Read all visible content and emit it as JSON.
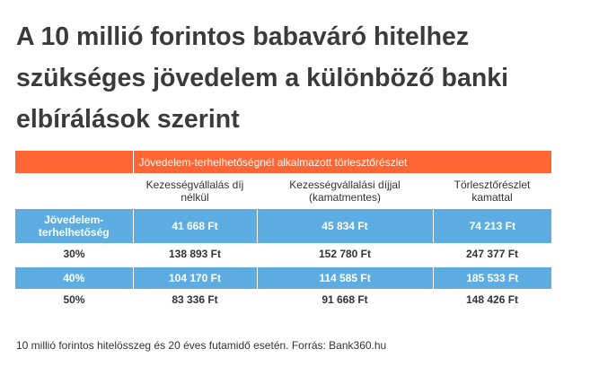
{
  "title": "A 10 millió forintos babaváró hitelhez szükséges jövedelem a különböző banki elbírálások szerint",
  "colors": {
    "orange": "#ff6633",
    "blue": "#5dade2"
  },
  "chart_data": {
    "type": "table",
    "group_header": "Jövedelem-terhelhetőségnél alkalmazott törlesztőrészlet",
    "columns": [
      "",
      "Kezességvállalás díj nélkül",
      "Kezességvállalási díjjal (kamatmentes)",
      "Törlesztőrészlet kamattal"
    ],
    "rows": [
      [
        "Jövedelem-terhelhetőség",
        "41 668 Ft",
        "45 834 Ft",
        "74 213 Ft"
      ],
      [
        "30%",
        "138 893 Ft",
        "152 780 Ft",
        "247 377 Ft"
      ],
      [
        "40%",
        "104 170 Ft",
        "114 585  Ft",
        "185 533 Ft"
      ],
      [
        "50%",
        "83 336 Ft",
        "91 668  Ft",
        "148 426 Ft"
      ]
    ]
  },
  "footnote": "10 millió forintos hitelösszeg és 20 éves futamidő esetén. Forrás: Bank360.hu"
}
